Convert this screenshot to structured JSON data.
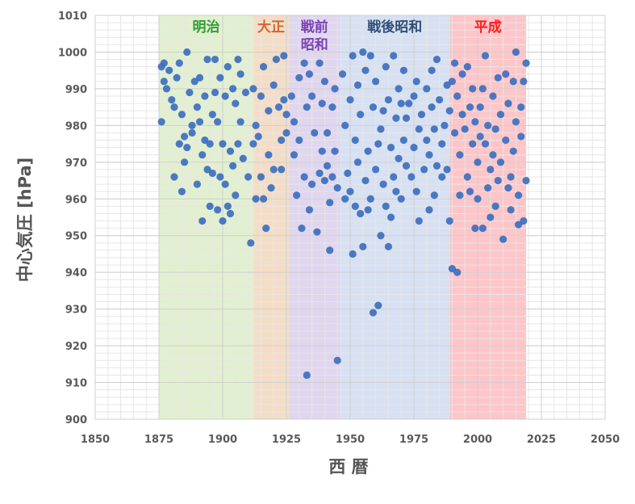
{
  "chart_data": {
    "type": "scatter",
    "title": "",
    "xlabel": "西 暦",
    "ylabel": "中心気圧 [hPa]",
    "xlim": [
      1850,
      2050
    ],
    "ylim": [
      900,
      1010
    ],
    "x_ticks": [
      1850,
      1875,
      1900,
      1925,
      1950,
      1975,
      2000,
      2025,
      2050
    ],
    "y_ticks": [
      900,
      910,
      920,
      930,
      940,
      950,
      960,
      970,
      980,
      990,
      1000,
      1010
    ],
    "grid": true,
    "marker_color": "#3d6fbf",
    "eras": [
      {
        "name": "明治",
        "start": 1875,
        "end": 1912,
        "fill": "#e2f0d0",
        "text_color": "#2e9e2e"
      },
      {
        "name": "大正",
        "start": 1912,
        "end": 1926,
        "fill": "#f4ddc6",
        "text_color": "#d4662a"
      },
      {
        "name_lines": [
          "戦前",
          "昭和"
        ],
        "start": 1926,
        "end": 1946,
        "fill": "#e0d6ef",
        "text_color": "#7b42b4"
      },
      {
        "name": "戦後昭和",
        "start": 1946,
        "end": 1989,
        "fill": "#d7e1f3",
        "text_color": "#2f4f7a"
      },
      {
        "name": "平成",
        "start": 1989,
        "end": 2019,
        "fill": "#ffc5c8",
        "text_color": "#ff1a1a"
      }
    ],
    "points": [
      [
        1876,
        996
      ],
      [
        1877,
        997
      ],
      [
        1877,
        992
      ],
      [
        1879,
        995
      ],
      [
        1876,
        981
      ],
      [
        1880,
        987
      ],
      [
        1878,
        990
      ],
      [
        1881,
        985
      ],
      [
        1882,
        993
      ],
      [
        1883,
        997
      ],
      [
        1883,
        975
      ],
      [
        1884,
        983
      ],
      [
        1881,
        966
      ],
      [
        1884,
        962
      ],
      [
        1885,
        970
      ],
      [
        1885,
        977
      ],
      [
        1886,
        1000
      ],
      [
        1886,
        974
      ],
      [
        1887,
        989
      ],
      [
        1888,
        980
      ],
      [
        1888,
        978
      ],
      [
        1889,
        992
      ],
      [
        1890,
        964
      ],
      [
        1890,
        985
      ],
      [
        1891,
        993
      ],
      [
        1891,
        981
      ],
      [
        1892,
        954
      ],
      [
        1892,
        972
      ],
      [
        1893,
        988
      ],
      [
        1893,
        976
      ],
      [
        1894,
        998
      ],
      [
        1894,
        968
      ],
      [
        1895,
        975
      ],
      [
        1895,
        958
      ],
      [
        1896,
        983
      ],
      [
        1896,
        967
      ],
      [
        1897,
        998
      ],
      [
        1897,
        989
      ],
      [
        1898,
        957
      ],
      [
        1898,
        981
      ],
      [
        1899,
        993
      ],
      [
        1899,
        966
      ],
      [
        1900,
        954
      ],
      [
        1900,
        975
      ],
      [
        1901,
        988
      ],
      [
        1901,
        964
      ],
      [
        1902,
        996
      ],
      [
        1902,
        958
      ],
      [
        1903,
        973
      ],
      [
        1903,
        956
      ],
      [
        1904,
        990
      ],
      [
        1904,
        969
      ],
      [
        1905,
        986
      ],
      [
        1905,
        961
      ],
      [
        1906,
        998
      ],
      [
        1906,
        975
      ],
      [
        1907,
        994
      ],
      [
        1907,
        981
      ],
      [
        1908,
        971
      ],
      [
        1909,
        989
      ],
      [
        1910,
        966
      ],
      [
        1911,
        948
      ],
      [
        1912,
        990
      ],
      [
        1912,
        975
      ],
      [
        1913,
        960
      ],
      [
        1913,
        980
      ],
      [
        1914,
        977
      ],
      [
        1915,
        988
      ],
      [
        1915,
        966
      ],
      [
        1916,
        996
      ],
      [
        1916,
        960
      ],
      [
        1917,
        952
      ],
      [
        1918,
        984
      ],
      [
        1918,
        972
      ],
      [
        1919,
        963
      ],
      [
        1920,
        991
      ],
      [
        1920,
        968
      ],
      [
        1921,
        998
      ],
      [
        1922,
        985
      ],
      [
        1923,
        976
      ],
      [
        1923,
        968
      ],
      [
        1924,
        999
      ],
      [
        1924,
        987
      ],
      [
        1925,
        983
      ],
      [
        1925,
        978
      ],
      [
        1927,
        988
      ],
      [
        1928,
        981
      ],
      [
        1928,
        972
      ],
      [
        1929,
        961
      ],
      [
        1930,
        993
      ],
      [
        1930,
        976
      ],
      [
        1931,
        952
      ],
      [
        1932,
        997
      ],
      [
        1932,
        966
      ],
      [
        1933,
        985
      ],
      [
        1933,
        912
      ],
      [
        1934,
        994
      ],
      [
        1934,
        957
      ],
      [
        1935,
        964
      ],
      [
        1935,
        988
      ],
      [
        1936,
        978
      ],
      [
        1937,
        951
      ],
      [
        1938,
        997
      ],
      [
        1938,
        967
      ],
      [
        1939,
        986
      ],
      [
        1939,
        973
      ],
      [
        1940,
        992
      ],
      [
        1940,
        965
      ],
      [
        1941,
        969
      ],
      [
        1941,
        978
      ],
      [
        1942,
        946
      ],
      [
        1942,
        959
      ],
      [
        1943,
        985
      ],
      [
        1943,
        966
      ],
      [
        1944,
        990
      ],
      [
        1944,
        973
      ],
      [
        1945,
        916
      ],
      [
        1945,
        963
      ],
      [
        1947,
        994
      ],
      [
        1948,
        980
      ],
      [
        1948,
        960
      ],
      [
        1949,
        967
      ],
      [
        1950,
        987
      ],
      [
        1950,
        962
      ],
      [
        1951,
        999
      ],
      [
        1951,
        945
      ],
      [
        1952,
        976
      ],
      [
        1952,
        958
      ],
      [
        1953,
        991
      ],
      [
        1953,
        970
      ],
      [
        1954,
        956
      ],
      [
        1954,
        983
      ],
      [
        1955,
        1000
      ],
      [
        1955,
        947
      ],
      [
        1956,
        995
      ],
      [
        1956,
        965
      ],
      [
        1957,
        973
      ],
      [
        1957,
        957
      ],
      [
        1958,
        999
      ],
      [
        1958,
        960
      ],
      [
        1959,
        985
      ],
      [
        1959,
        929
      ],
      [
        1960,
        992
      ],
      [
        1960,
        968
      ],
      [
        1961,
        931
      ],
      [
        1961,
        975
      ],
      [
        1962,
        979
      ],
      [
        1962,
        950
      ],
      [
        1963,
        964
      ],
      [
        1963,
        984
      ],
      [
        1964,
        996
      ],
      [
        1964,
        958
      ],
      [
        1965,
        947
      ],
      [
        1965,
        987
      ],
      [
        1966,
        974
      ],
      [
        1966,
        955
      ],
      [
        1967,
        999
      ],
      [
        1967,
        966
      ],
      [
        1968,
        982
      ],
      [
        1968,
        962
      ],
      [
        1969,
        990
      ],
      [
        1969,
        971
      ],
      [
        1970,
        986
      ],
      [
        1970,
        960
      ],
      [
        1971,
        995
      ],
      [
        1971,
        976
      ],
      [
        1972,
        969
      ],
      [
        1972,
        982
      ],
      [
        1973,
        986
      ],
      [
        1974,
        966
      ],
      [
        1975,
        974
      ],
      [
        1975,
        988
      ],
      [
        1976,
        992
      ],
      [
        1976,
        962
      ],
      [
        1977,
        979
      ],
      [
        1977,
        954
      ],
      [
        1978,
        983
      ],
      [
        1979,
        968
      ],
      [
        1980,
        990
      ],
      [
        1980,
        976
      ],
      [
        1981,
        957
      ],
      [
        1981,
        972
      ],
      [
        1982,
        995
      ],
      [
        1982,
        985
      ],
      [
        1983,
        979
      ],
      [
        1983,
        961
      ],
      [
        1984,
        998
      ],
      [
        1984,
        969
      ],
      [
        1985,
        987
      ],
      [
        1986,
        975
      ],
      [
        1986,
        966
      ],
      [
        1987,
        980
      ],
      [
        1988,
        991
      ],
      [
        1988,
        968
      ],
      [
        1989,
        954
      ],
      [
        1989,
        984
      ],
      [
        1990,
        941
      ],
      [
        1990,
        992
      ],
      [
        1991,
        997
      ],
      [
        1991,
        978
      ],
      [
        1992,
        940
      ],
      [
        1992,
        988
      ],
      [
        1993,
        961
      ],
      [
        1993,
        972
      ],
      [
        1994,
        994
      ],
      [
        1994,
        983
      ],
      [
        1995,
        979
      ],
      [
        1996,
        996
      ],
      [
        1996,
        966
      ],
      [
        1997,
        985
      ],
      [
        1997,
        962
      ],
      [
        1998,
        990
      ],
      [
        1998,
        975
      ],
      [
        1999,
        952
      ],
      [
        1999,
        981
      ],
      [
        2000,
        970
      ],
      [
        2000,
        960
      ],
      [
        2001,
        985
      ],
      [
        2001,
        977
      ],
      [
        2002,
        952
      ],
      [
        2002,
        990
      ],
      [
        2003,
        999
      ],
      [
        2003,
        975
      ],
      [
        2004,
        963
      ],
      [
        2004,
        980
      ],
      [
        2005,
        955
      ],
      [
        2005,
        968
      ],
      [
        2006,
        988
      ],
      [
        2006,
        972
      ],
      [
        2007,
        958
      ],
      [
        2007,
        979
      ],
      [
        2008,
        993
      ],
      [
        2008,
        965
      ],
      [
        2009,
        983
      ],
      [
        2009,
        970
      ],
      [
        2010,
        949
      ],
      [
        2011,
        994
      ],
      [
        2011,
        976
      ],
      [
        2012,
        963
      ],
      [
        2012,
        986
      ],
      [
        2013,
        957
      ],
      [
        2013,
        966
      ],
      [
        2014,
        992
      ],
      [
        2014,
        973
      ],
      [
        2015,
        1000
      ],
      [
        2015,
        981
      ],
      [
        2016,
        961
      ],
      [
        2016,
        953
      ],
      [
        2017,
        985
      ],
      [
        2017,
        977
      ],
      [
        2018,
        954
      ],
      [
        2018,
        992
      ],
      [
        2019,
        997
      ],
      [
        2019,
        965
      ]
    ]
  }
}
